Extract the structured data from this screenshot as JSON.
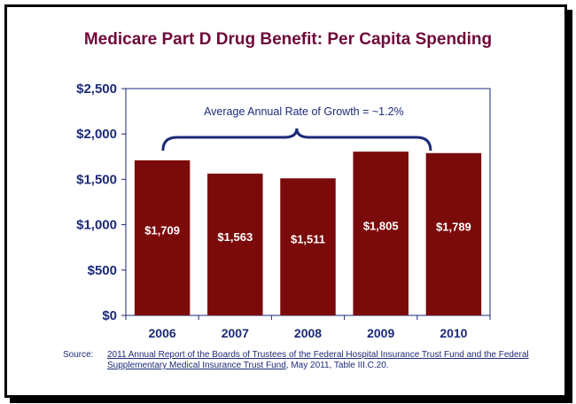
{
  "chart_data": {
    "type": "bar",
    "title": "Medicare Part D Drug Benefit:  Per Capita Spending",
    "categories": [
      "2006",
      "2007",
      "2008",
      "2009",
      "2010"
    ],
    "values": [
      1709,
      1563,
      1511,
      1805,
      1789
    ],
    "data_labels": [
      "$1,709",
      "$1,563",
      "$1,511",
      "$1,805",
      "$1,789"
    ],
    "ylim": [
      0,
      2500
    ],
    "yticks": [
      0,
      500,
      1000,
      1500,
      2000,
      2500
    ],
    "ytick_labels": [
      "$0",
      "$500",
      "$1,000",
      "$1,500",
      "$2,000",
      "$2,500"
    ],
    "xlabel": "",
    "ylabel": "",
    "annotation": "Average Annual Rate of Growth = ~1.2%",
    "grid": false,
    "legend": "none",
    "colors": {
      "bar": "#7b0a0a",
      "axis_text": "#1c2a78",
      "title": "#6e0a3a",
      "data_label": "#ffffff"
    }
  },
  "source": {
    "label": "Source:",
    "link_text": "2011 Annual Report of the Boards of Trustees of the Federal Hospital Insurance Trust Fund and the Federal Supplementary Medical Insurance Trust Fund",
    "suffix": ", May 2011, Table III.C.20."
  }
}
